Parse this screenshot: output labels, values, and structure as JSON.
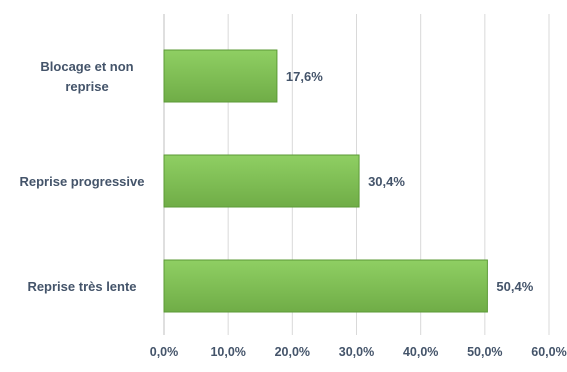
{
  "chart_data": {
    "type": "bar",
    "orientation": "horizontal",
    "categories": [
      "Blocage et non reprise",
      "Reprise progressive",
      "Reprise très lente"
    ],
    "category_lines": [
      [
        "Blocage et non",
        "reprise"
      ],
      [
        "Reprise progressive"
      ],
      [
        "Reprise très lente"
      ]
    ],
    "values": [
      17.6,
      30.4,
      50.4
    ],
    "data_labels": [
      "17,6%",
      "30,4%",
      "50,4%"
    ],
    "xlim": [
      0,
      60
    ],
    "x_ticks": [
      0,
      10,
      20,
      30,
      40,
      50,
      60
    ],
    "x_tick_labels": [
      "0,0%",
      "10,0%",
      "20,0%",
      "30,0%",
      "40,0%",
      "50,0%",
      "60,0%"
    ],
    "title": "",
    "xlabel": "",
    "ylabel": "",
    "grid": "vertical",
    "legend": "none",
    "colors": {
      "bar_fill": "#70ad47",
      "bar_fill_light": "#8fcf63",
      "bar_stroke": "#5b9a36",
      "text": "#44546a",
      "grid": "#d9d9d9"
    }
  }
}
